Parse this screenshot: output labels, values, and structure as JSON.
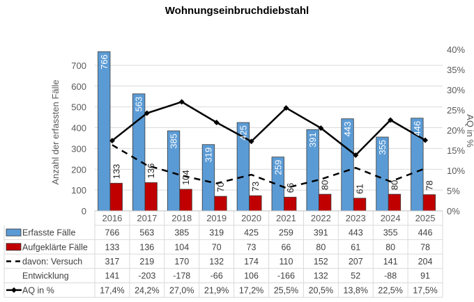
{
  "chart_data": {
    "type": "bar",
    "title": "Wohnungseinbruchdiebstahl",
    "categories": [
      "2016",
      "2017",
      "2018",
      "2019",
      "2020",
      "2021",
      "2022",
      "2023",
      "2024",
      "2025"
    ],
    "ylabel": "Anzahl der erfassten Fälle",
    "y2label": "AQ in %",
    "ylim": [
      0,
      780
    ],
    "yticks": [
      0,
      100,
      200,
      300,
      400,
      500,
      600,
      700
    ],
    "y2lim": [
      0,
      40
    ],
    "y2ticks": [
      "0%",
      "5%",
      "10%",
      "15%",
      "20%",
      "25%",
      "30%",
      "35%",
      "40%"
    ],
    "grid": true,
    "legend": "data-table",
    "series": [
      {
        "name": "Erfasste Fälle",
        "kind": "bar",
        "axis": "left",
        "color": "#5b9bd5",
        "values": [
          766,
          563,
          385,
          319,
          425,
          259,
          391,
          443,
          355,
          446
        ]
      },
      {
        "name": "Aufgeklärte Fälle",
        "kind": "bar",
        "axis": "left",
        "color": "#c00000",
        "values": [
          133,
          136,
          104,
          70,
          73,
          66,
          80,
          61,
          80,
          78
        ]
      },
      {
        "name": "davon: Versuch",
        "kind": "dashed-line",
        "axis": "left",
        "color": "#000000",
        "values": [
          317,
          219,
          170,
          132,
          174,
          110,
          152,
          207,
          141,
          204
        ]
      },
      {
        "name": "Entwicklung",
        "kind": "table-only",
        "values": [
          141,
          -203,
          -178,
          -66,
          106,
          -166,
          132,
          52,
          -88,
          91
        ]
      },
      {
        "name": "AQ in %",
        "kind": "line-marker",
        "axis": "right",
        "color": "#000000",
        "values": [
          17.4,
          24.2,
          27.0,
          21.9,
          17.2,
          25.5,
          20.5,
          13.8,
          22.5,
          17.5
        ],
        "labels": [
          "17,4%",
          "24,2%",
          "27,0%",
          "21,9%",
          "17,2%",
          "25,5%",
          "20,5%",
          "13,8%",
          "22,5%",
          "17,5%"
        ]
      }
    ]
  }
}
